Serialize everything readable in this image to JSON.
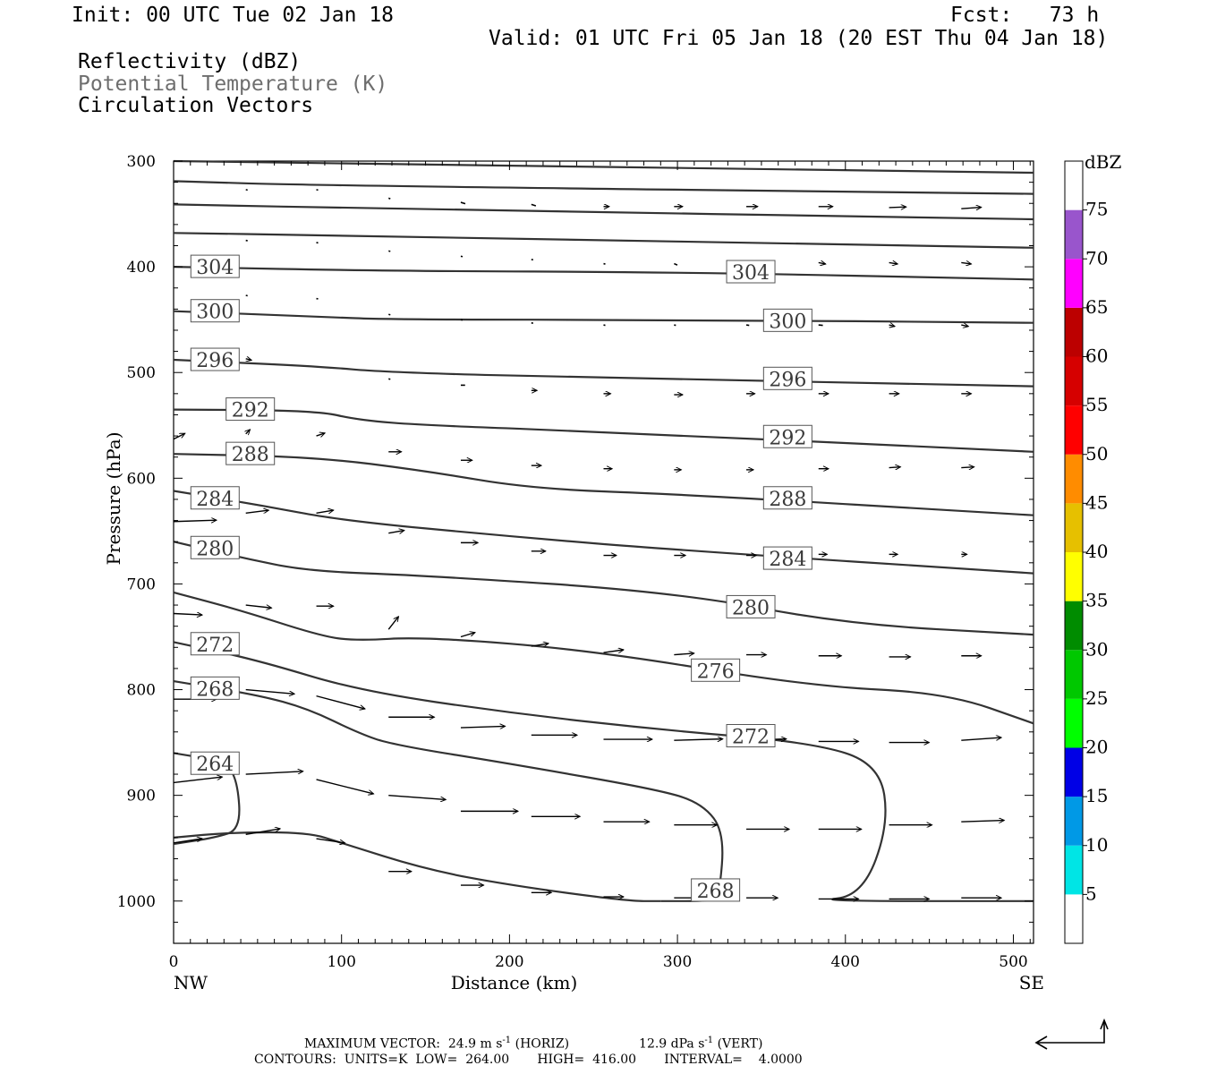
{
  "header": {
    "init": "Init: 00 UTC Tue 02 Jan 18",
    "fcst": "Fcst:   73 h",
    "valid": "Valid: 01 UTC Fri 05 Jan 18 (20 EST Thu 04 Jan 18)",
    "field1": "Reflectivity (dBZ)",
    "field2": "Potential Temperature (K)",
    "field3": "Circulation Vectors"
  },
  "footer": {
    "line1_a": "MAXIMUM VECTOR:  24.9 m s",
    "line1_b": "-1",
    "line1_c": " (HORIZ)",
    "line1_d": "12.9 dPa s",
    "line1_e": "-1",
    "line1_f": " (VERT)",
    "line2": "CONTOURS:  UNITS=K  LOW=  264.00       HIGH=  416.00       INTERVAL=    4.0000"
  },
  "chart_data": {
    "type": "contour",
    "xlabel": "Distance (km)",
    "ylabel": "Pressure (hPa)",
    "xlim": [
      0,
      512
    ],
    "ylim": [
      300,
      1040
    ],
    "x_ticks": [
      "0",
      "100",
      "200",
      "300",
      "400",
      "500"
    ],
    "y_ticks": [
      "300",
      "400",
      "500",
      "600",
      "700",
      "800",
      "900",
      "1000"
    ],
    "x_end_labels": {
      "left": "NW",
      "right": "SE"
    },
    "isotherm_color": "#333333",
    "contours": [
      {
        "level": "",
        "points": [
          [
            0,
            300
          ],
          [
            512,
            311
          ]
        ]
      },
      {
        "level": "",
        "points": [
          [
            0,
            319
          ],
          [
            85,
            323
          ],
          [
            512,
            331
          ]
        ]
      },
      {
        "level": "",
        "points": [
          [
            0,
            341
          ],
          [
            128,
            345
          ],
          [
            512,
            355
          ]
        ]
      },
      {
        "level": "",
        "points": [
          [
            0,
            368
          ],
          [
            85,
            370
          ],
          [
            512,
            382
          ]
        ]
      },
      {
        "level": "304",
        "points": [
          [
            0,
            400
          ],
          [
            128,
            404
          ],
          [
            300,
            405
          ],
          [
            512,
            412
          ]
        ]
      },
      {
        "level": "300",
        "points": [
          [
            0,
            442
          ],
          [
            85,
            447
          ],
          [
            128,
            450
          ],
          [
            300,
            450
          ],
          [
            512,
            453
          ]
        ]
      },
      {
        "level": "296",
        "points": [
          [
            0,
            488
          ],
          [
            85,
            494
          ],
          [
            128,
            500
          ],
          [
            256,
            505
          ],
          [
            512,
            513
          ]
        ]
      },
      {
        "level": "292",
        "points": [
          [
            0,
            535
          ],
          [
            85,
            536
          ],
          [
            110,
            545
          ],
          [
            150,
            550
          ],
          [
            256,
            556
          ],
          [
            512,
            575
          ]
        ]
      },
      {
        "level": "288",
        "points": [
          [
            0,
            577
          ],
          [
            85,
            580
          ],
          [
            150,
            593
          ],
          [
            213,
            610
          ],
          [
            300,
            615
          ],
          [
            512,
            635
          ]
        ]
      },
      {
        "level": "284",
        "points": [
          [
            0,
            612
          ],
          [
            50,
            625
          ],
          [
            100,
            640
          ],
          [
            200,
            655
          ],
          [
            300,
            668
          ],
          [
            512,
            690
          ]
        ]
      },
      {
        "level": "280",
        "points": [
          [
            0,
            660
          ],
          [
            40,
            675
          ],
          [
            80,
            688
          ],
          [
            150,
            692
          ],
          [
            300,
            708
          ],
          [
            400,
            738
          ],
          [
            512,
            748
          ]
        ]
      },
      {
        "level": "276",
        "points": [
          [
            0,
            708
          ],
          [
            40,
            725
          ],
          [
            85,
            748
          ],
          [
            107,
            754
          ],
          [
            150,
            750
          ],
          [
            250,
            763
          ],
          [
            380,
            797
          ],
          [
            460,
            803
          ],
          [
            512,
            832
          ]
        ]
      },
      {
        "level": "272",
        "points": [
          [
            0,
            755
          ],
          [
            50,
            772
          ],
          [
            110,
            801
          ],
          [
            200,
            822
          ],
          [
            290,
            838
          ],
          [
            380,
            850
          ],
          [
            420,
            870
          ],
          [
            426,
            927
          ],
          [
            410,
            995
          ],
          [
            380,
            1000
          ],
          [
            512,
            1000
          ]
        ]
      },
      {
        "level": "268",
        "points": [
          [
            0,
            792
          ],
          [
            50,
            805
          ],
          [
            80,
            818
          ],
          [
            110,
            841
          ],
          [
            130,
            852
          ],
          [
            200,
            870
          ],
          [
            290,
            895
          ],
          [
            315,
            908
          ],
          [
            328,
            935
          ],
          [
            325,
            995
          ],
          [
            320,
            1000
          ],
          [
            290,
            1000
          ]
        ]
      },
      {
        "level": "264",
        "points": [
          [
            0,
            860
          ],
          [
            30,
            868
          ],
          [
            38,
            885
          ],
          [
            40,
            932
          ],
          [
            25,
            940
          ],
          [
            0,
            946
          ]
        ]
      },
      {
        "level": "",
        "points": [
          [
            0,
            940
          ],
          [
            35,
            935
          ],
          [
            80,
            935
          ],
          [
            100,
            945
          ],
          [
            150,
            970
          ],
          [
            200,
            985
          ],
          [
            270,
            1000
          ],
          [
            290,
            1000
          ]
        ]
      }
    ],
    "contour_labels": [
      {
        "text": "304",
        "x": 22,
        "p": 400
      },
      {
        "text": "304",
        "x": 341,
        "p": 405
      },
      {
        "text": "300",
        "x": 22,
        "p": 442
      },
      {
        "text": "300",
        "x": 363,
        "p": 451
      },
      {
        "text": "296",
        "x": 22,
        "p": 488
      },
      {
        "text": "296",
        "x": 363,
        "p": 506
      },
      {
        "text": "292",
        "x": 43,
        "p": 535
      },
      {
        "text": "292",
        "x": 363,
        "p": 561
      },
      {
        "text": "288",
        "x": 43,
        "p": 577
      },
      {
        "text": "288",
        "x": 363,
        "p": 619
      },
      {
        "text": "284",
        "x": 22,
        "p": 619
      },
      {
        "text": "284",
        "x": 363,
        "p": 676
      },
      {
        "text": "280",
        "x": 22,
        "p": 666
      },
      {
        "text": "280",
        "x": 341,
        "p": 722
      },
      {
        "text": "276",
        "x": 320,
        "p": 782
      },
      {
        "text": "272",
        "x": 22,
        "p": 757
      },
      {
        "text": "272",
        "x": 341,
        "p": 844
      },
      {
        "text": "268",
        "x": 22,
        "p": 799
      },
      {
        "text": "268",
        "x": 320,
        "p": 990
      },
      {
        "text": "264",
        "x": 22,
        "p": 870
      }
    ],
    "vectors": [
      {
        "x": 43,
        "p": 327,
        "u": 1,
        "v": 0.3
      },
      {
        "x": 85,
        "p": 327,
        "u": 1,
        "v": 0.3
      },
      {
        "x": 128,
        "p": 335,
        "u": 1,
        "v": 0.5
      },
      {
        "x": 171,
        "p": 339,
        "u": 3,
        "v": 1
      },
      {
        "x": 213,
        "p": 341,
        "u": 3,
        "v": 1
      },
      {
        "x": 256,
        "p": 343,
        "u": 4,
        "v": 0
      },
      {
        "x": 298,
        "p": 343,
        "u": 6,
        "v": 0
      },
      {
        "x": 341,
        "p": 343,
        "u": 8,
        "v": 0
      },
      {
        "x": 384,
        "p": 343,
        "u": 10,
        "v": 0
      },
      {
        "x": 426,
        "p": 344,
        "u": 12,
        "v": -0.5
      },
      {
        "x": 469,
        "p": 345,
        "u": 14,
        "v": -1
      },
      {
        "x": 43,
        "p": 375,
        "u": 1,
        "v": 0.3
      },
      {
        "x": 85,
        "p": 377,
        "u": 1,
        "v": 0.3
      },
      {
        "x": 128,
        "p": 385,
        "u": 1,
        "v": 0.3
      },
      {
        "x": 171,
        "p": 390,
        "u": 1,
        "v": 0.3
      },
      {
        "x": 213,
        "p": 393,
        "u": 1,
        "v": 0.3
      },
      {
        "x": 256,
        "p": 397,
        "u": 1,
        "v": 0.3
      },
      {
        "x": 298,
        "p": 397,
        "u": 2,
        "v": 1
      },
      {
        "x": 341,
        "p": 397,
        "u": 4,
        "v": 1
      },
      {
        "x": 384,
        "p": 396,
        "u": 5,
        "v": 1
      },
      {
        "x": 426,
        "p": 396,
        "u": 6,
        "v": 1
      },
      {
        "x": 469,
        "p": 396,
        "u": 7,
        "v": 1
      },
      {
        "x": 43,
        "p": 427,
        "u": 1,
        "v": 0.3
      },
      {
        "x": 85,
        "p": 430,
        "u": 1,
        "v": 0.3
      },
      {
        "x": 128,
        "p": 445,
        "u": 1,
        "v": 0.3
      },
      {
        "x": 171,
        "p": 450,
        "u": 1,
        "v": 0.3
      },
      {
        "x": 213,
        "p": 453,
        "u": 1,
        "v": 0.3
      },
      {
        "x": 256,
        "p": 455,
        "u": 1,
        "v": 0.3
      },
      {
        "x": 298,
        "p": 455,
        "u": 1,
        "v": 0.3
      },
      {
        "x": 341,
        "p": 455,
        "u": 2,
        "v": 0.3
      },
      {
        "x": 384,
        "p": 455,
        "u": 3,
        "v": 0.3
      },
      {
        "x": 426,
        "p": 455,
        "u": 4,
        "v": 1
      },
      {
        "x": 469,
        "p": 455,
        "u": 5,
        "v": 1
      },
      {
        "x": 43,
        "p": 487,
        "u": 4,
        "v": 1
      },
      {
        "x": 128,
        "p": 506,
        "u": 1,
        "v": 0.3
      },
      {
        "x": 171,
        "p": 512,
        "u": 3,
        "v": 0
      },
      {
        "x": 213,
        "p": 517,
        "u": 4,
        "v": 0
      },
      {
        "x": 256,
        "p": 520,
        "u": 5,
        "v": 0
      },
      {
        "x": 298,
        "p": 521,
        "u": 6,
        "v": 0
      },
      {
        "x": 341,
        "p": 520,
        "u": 6,
        "v": 0
      },
      {
        "x": 384,
        "p": 520,
        "u": 7,
        "v": 0
      },
      {
        "x": 426,
        "p": 520,
        "u": 7,
        "v": 0
      },
      {
        "x": 469,
        "p": 520,
        "u": 7,
        "v": 0
      },
      {
        "x": 0,
        "p": 563,
        "u": 8,
        "v": -4
      },
      {
        "x": 43,
        "p": 558,
        "u": 3,
        "v": -3
      },
      {
        "x": 85,
        "p": 560,
        "u": 6,
        "v": -2
      },
      {
        "x": 128,
        "p": 575,
        "u": 9,
        "v": 0
      },
      {
        "x": 171,
        "p": 583,
        "u": 8,
        "v": 0
      },
      {
        "x": 213,
        "p": 588,
        "u": 7,
        "v": 0
      },
      {
        "x": 256,
        "p": 591,
        "u": 6,
        "v": 0
      },
      {
        "x": 298,
        "p": 592,
        "u": 5,
        "v": 0
      },
      {
        "x": 341,
        "p": 592,
        "u": 5,
        "v": 0
      },
      {
        "x": 384,
        "p": 591,
        "u": 7,
        "v": 0
      },
      {
        "x": 426,
        "p": 590,
        "u": 8,
        "v": -0.5
      },
      {
        "x": 469,
        "p": 590,
        "u": 9,
        "v": -0.5
      },
      {
        "x": 0,
        "p": 641,
        "u": 30,
        "v": -1
      },
      {
        "x": 43,
        "p": 633,
        "u": 16,
        "v": -2
      },
      {
        "x": 85,
        "p": 633,
        "u": 12,
        "v": -2
      },
      {
        "x": 128,
        "p": 652,
        "u": 11,
        "v": -2
      },
      {
        "x": 171,
        "p": 661,
        "u": 12,
        "v": 0
      },
      {
        "x": 213,
        "p": 669,
        "u": 10,
        "v": 0
      },
      {
        "x": 256,
        "p": 673,
        "u": 9,
        "v": 0
      },
      {
        "x": 298,
        "p": 673,
        "u": 8,
        "v": 0
      },
      {
        "x": 341,
        "p": 673,
        "u": 7,
        "v": 0
      },
      {
        "x": 384,
        "p": 672,
        "u": 6,
        "v": 0
      },
      {
        "x": 426,
        "p": 672,
        "u": 6,
        "v": 0
      },
      {
        "x": 469,
        "p": 672,
        "u": 4,
        "v": 0
      },
      {
        "x": 0,
        "p": 728,
        "u": 20,
        "v": 1
      },
      {
        "x": 43,
        "p": 720,
        "u": 18,
        "v": 2
      },
      {
        "x": 85,
        "p": 721,
        "u": 12,
        "v": 0
      },
      {
        "x": 128,
        "p": 743,
        "u": 7,
        "v": -9
      },
      {
        "x": 171,
        "p": 750,
        "u": 10,
        "v": -3
      },
      {
        "x": 213,
        "p": 759,
        "u": 12,
        "v": -2
      },
      {
        "x": 256,
        "p": 765,
        "u": 14,
        "v": -2
      },
      {
        "x": 298,
        "p": 767,
        "u": 14,
        "v": -1
      },
      {
        "x": 341,
        "p": 767,
        "u": 14,
        "v": 0
      },
      {
        "x": 384,
        "p": 768,
        "u": 16,
        "v": 0
      },
      {
        "x": 426,
        "p": 769,
        "u": 15,
        "v": 0
      },
      {
        "x": 469,
        "p": 768,
        "u": 14,
        "v": 0
      },
      {
        "x": 0,
        "p": 809,
        "u": 30,
        "v": 0
      },
      {
        "x": 43,
        "p": 800,
        "u": 34,
        "v": 3
      },
      {
        "x": 85,
        "p": 806,
        "u": 34,
        "v": 9
      },
      {
        "x": 128,
        "p": 826,
        "u": 32,
        "v": 0
      },
      {
        "x": 171,
        "p": 836,
        "u": 31,
        "v": -1
      },
      {
        "x": 213,
        "p": 843,
        "u": 32,
        "v": 0
      },
      {
        "x": 256,
        "p": 847,
        "u": 34,
        "v": 0
      },
      {
        "x": 298,
        "p": 848,
        "u": 34,
        "v": -1
      },
      {
        "x": 341,
        "p": 848,
        "u": 28,
        "v": -1
      },
      {
        "x": 384,
        "p": 849,
        "u": 28,
        "v": 0
      },
      {
        "x": 426,
        "p": 850,
        "u": 28,
        "v": 0
      },
      {
        "x": 469,
        "p": 848,
        "u": 28,
        "v": -2
      },
      {
        "x": 0,
        "p": 888,
        "u": 34,
        "v": -4
      },
      {
        "x": 43,
        "p": 880,
        "u": 40,
        "v": -2
      },
      {
        "x": 85,
        "p": 885,
        "u": 40,
        "v": 10
      },
      {
        "x": 128,
        "p": 900,
        "u": 40,
        "v": 3
      },
      {
        "x": 171,
        "p": 915,
        "u": 40,
        "v": 0
      },
      {
        "x": 213,
        "p": 920,
        "u": 34,
        "v": 0
      },
      {
        "x": 256,
        "p": 925,
        "u": 32,
        "v": 0
      },
      {
        "x": 298,
        "p": 928,
        "u": 30,
        "v": 0
      },
      {
        "x": 341,
        "p": 932,
        "u": 30,
        "v": 0
      },
      {
        "x": 384,
        "p": 932,
        "u": 30,
        "v": 0
      },
      {
        "x": 426,
        "p": 928,
        "u": 30,
        "v": 0
      },
      {
        "x": 469,
        "p": 925,
        "u": 30,
        "v": -1
      },
      {
        "x": 0,
        "p": 945,
        "u": 20,
        "v": -3
      },
      {
        "x": 43,
        "p": 937,
        "u": 24,
        "v": -4
      },
      {
        "x": 85,
        "p": 941,
        "u": 20,
        "v": 3
      },
      {
        "x": 128,
        "p": 972,
        "u": 16,
        "v": 0
      },
      {
        "x": 171,
        "p": 985,
        "u": 16,
        "v": 0
      },
      {
        "x": 213,
        "p": 992,
        "u": 14,
        "v": 0
      },
      {
        "x": 256,
        "p": 996,
        "u": 14,
        "v": 0
      },
      {
        "x": 298,
        "p": 997,
        "u": 18,
        "v": 0
      },
      {
        "x": 341,
        "p": 997,
        "u": 22,
        "v": 0
      },
      {
        "x": 384,
        "p": 998,
        "u": 28,
        "v": 0
      },
      {
        "x": 426,
        "p": 998,
        "u": 28,
        "v": 0
      },
      {
        "x": 469,
        "p": 997,
        "u": 28,
        "v": 0
      }
    ],
    "colorbar": {
      "unit": "dBZ",
      "labels": [
        "5",
        "10",
        "15",
        "20",
        "25",
        "30",
        "35",
        "40",
        "45",
        "50",
        "55",
        "60",
        "65",
        "70",
        "75"
      ],
      "colors": [
        "#ffffff",
        "#00e5e5",
        "#0099e6",
        "#0000e6",
        "#00ff00",
        "#00c800",
        "#008c00",
        "#ffff00",
        "#e6c000",
        "#ff8c00",
        "#ff0000",
        "#d60000",
        "#bc0000",
        "#ff00ff",
        "#9955cc",
        "#ffffff"
      ]
    },
    "return_arrow_label": ""
  }
}
